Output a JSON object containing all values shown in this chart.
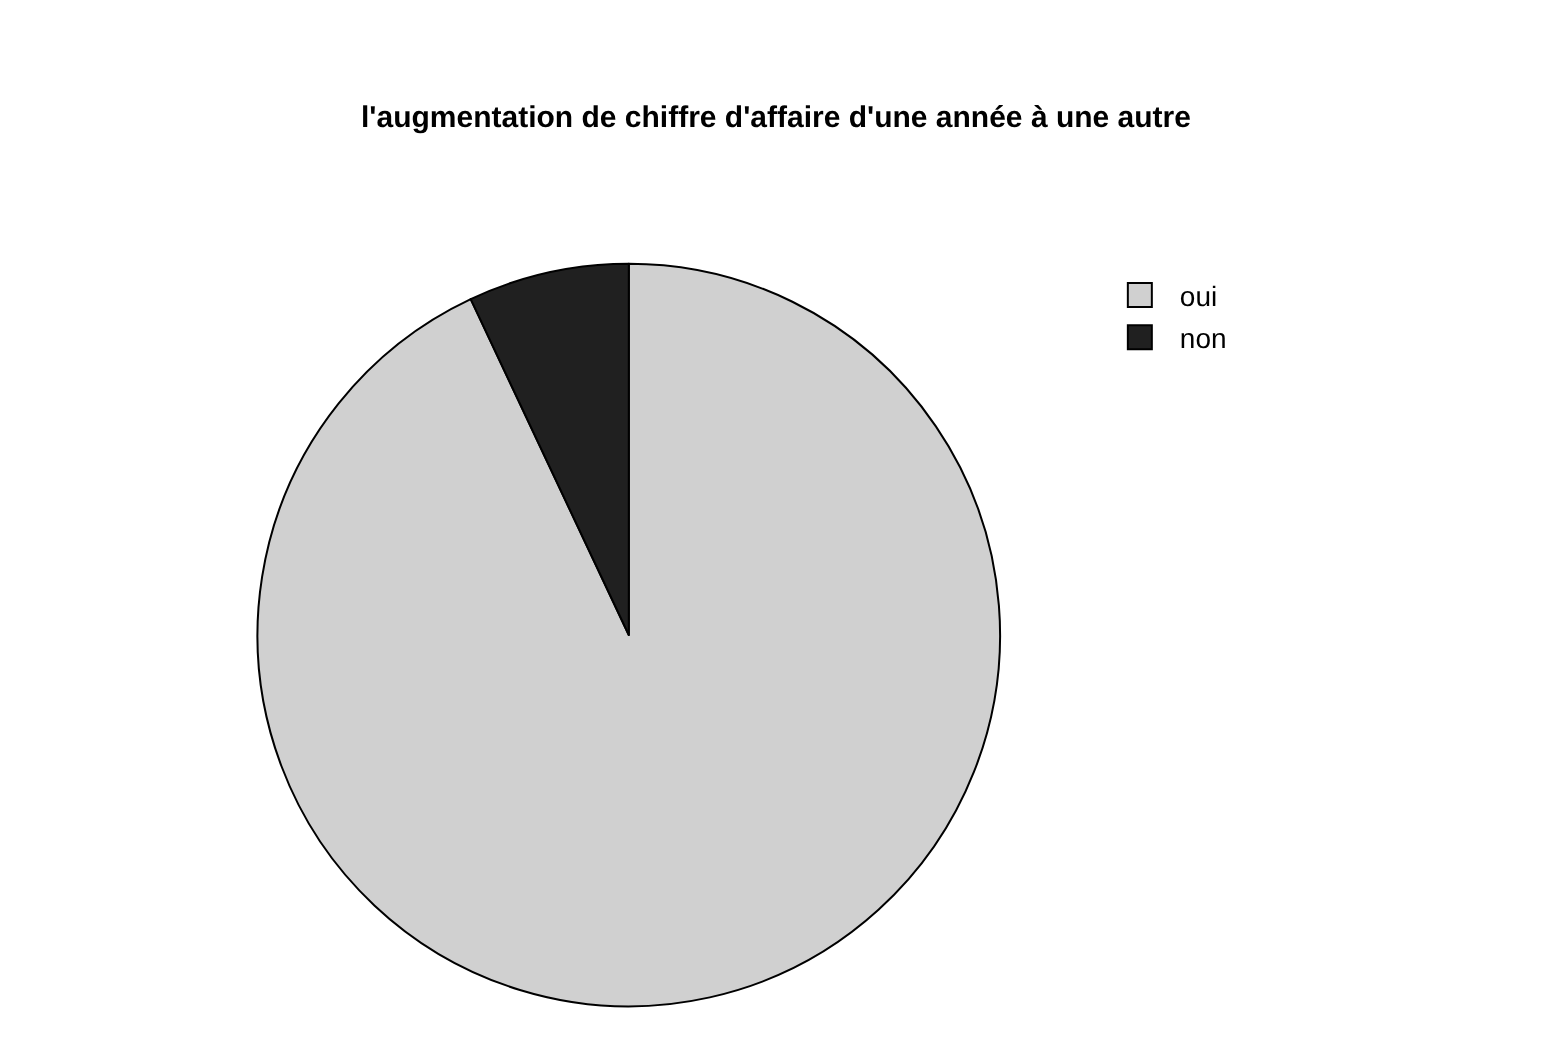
{
  "chart_data": {
    "type": "pie",
    "title": "l'augmentation de chiffre d'affaire d'une année à une autre",
    "categories": [
      "oui",
      "non"
    ],
    "values": [
      93,
      7
    ],
    "colors": [
      "#d0d0d0",
      "#202020"
    ],
    "legend": "top right"
  }
}
